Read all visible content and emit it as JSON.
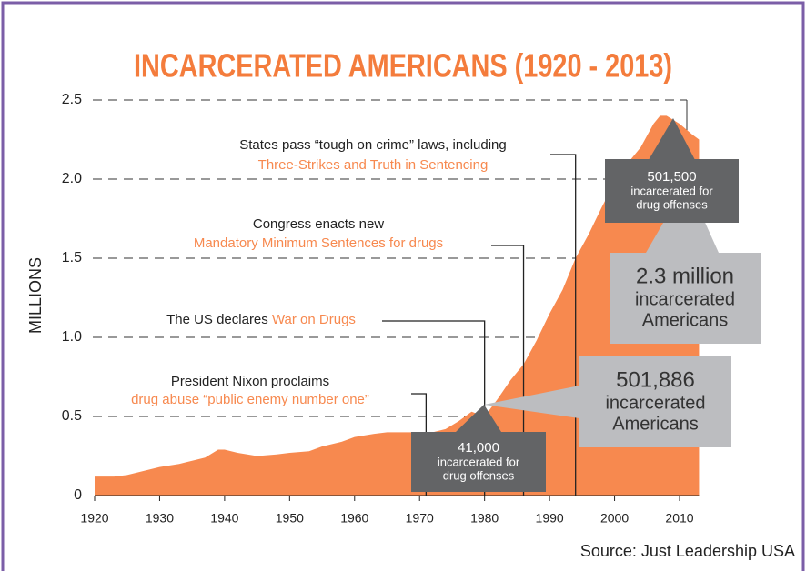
{
  "chart_data": {
    "type": "area",
    "title": "INCARCERATED AMERICANS (1920 - 2013)",
    "y_label": "MILLIONS",
    "source": "Source: Just Leadership USA",
    "color": "#f7894f",
    "x": [
      1920,
      1923,
      1925,
      1928,
      1930,
      1933,
      1935,
      1937,
      1939,
      1940,
      1942,
      1945,
      1948,
      1950,
      1953,
      1955,
      1958,
      1960,
      1963,
      1965,
      1968,
      1970,
      1972,
      1974,
      1976,
      1978,
      1980,
      1982,
      1984,
      1986,
      1988,
      1990,
      1992,
      1994,
      1996,
      1998,
      2000,
      2002,
      2004,
      2006,
      2007,
      2008,
      2010,
      2012,
      2013
    ],
    "values": [
      0.12,
      0.12,
      0.13,
      0.16,
      0.18,
      0.2,
      0.22,
      0.24,
      0.29,
      0.29,
      0.27,
      0.25,
      0.26,
      0.27,
      0.28,
      0.31,
      0.34,
      0.37,
      0.39,
      0.4,
      0.4,
      0.4,
      0.4,
      0.42,
      0.47,
      0.53,
      0.5,
      0.61,
      0.73,
      0.83,
      0.98,
      1.15,
      1.3,
      1.5,
      1.65,
      1.82,
      1.98,
      2.1,
      2.2,
      2.35,
      2.4,
      2.4,
      2.35,
      2.28,
      2.25
    ],
    "xlim": [
      1920,
      2013
    ],
    "ylim": [
      0,
      2.5
    ],
    "xticks": [
      1920,
      1930,
      1940,
      1950,
      1960,
      1970,
      1980,
      1990,
      2000,
      2010
    ],
    "yticks": [
      0,
      0.5,
      {
        "value": 1,
        "label": "1.0"
      },
      1.5,
      {
        "value": 2,
        "label": "2.0"
      },
      2.5
    ],
    "grid": true,
    "annotations": [
      {
        "year": 1971,
        "lines": [
          [
            {
              "text": "President Nixon proclaims",
              "color": "#222222"
            }
          ],
          [
            {
              "text": "drug abuse “public enemy number one”",
              "color": "#f7894f"
            }
          ]
        ]
      },
      {
        "year": 1980,
        "lines": [
          [
            {
              "text": "The US declares ",
              "color": "#222222"
            },
            {
              "text": "War on Drugs",
              "color": "#f7894f"
            }
          ]
        ]
      },
      {
        "year": 1986,
        "lines": [
          [
            {
              "text": "Congress enacts new",
              "color": "#222222"
            }
          ],
          [
            {
              "text": "Mandatory Minimum Sentences for drugs",
              "color": "#f7894f"
            }
          ]
        ]
      },
      {
        "year": 1994,
        "lines": [
          [
            {
              "text": "States pass “tough on crime” laws, including",
              "color": "#222222"
            }
          ],
          [
            {
              "text": "Three-Strikes and Truth in Sentencing",
              "color": "#f7894f"
            }
          ]
        ]
      }
    ],
    "callouts": [
      {
        "lines": [
          "41,000",
          "incarcerated for",
          "drug offenses"
        ],
        "color": "#636466"
      },
      {
        "lines": [
          "501,500",
          "incarcerated for",
          "drug offenses"
        ],
        "color": "#636466"
      },
      {
        "lines": [
          "2.3 million",
          "incarcerated",
          "Americans"
        ],
        "color": "#bcbdc0"
      },
      {
        "lines": [
          "501,886",
          "incarcerated",
          "Americans"
        ],
        "color": "#bcbdc0"
      }
    ]
  }
}
